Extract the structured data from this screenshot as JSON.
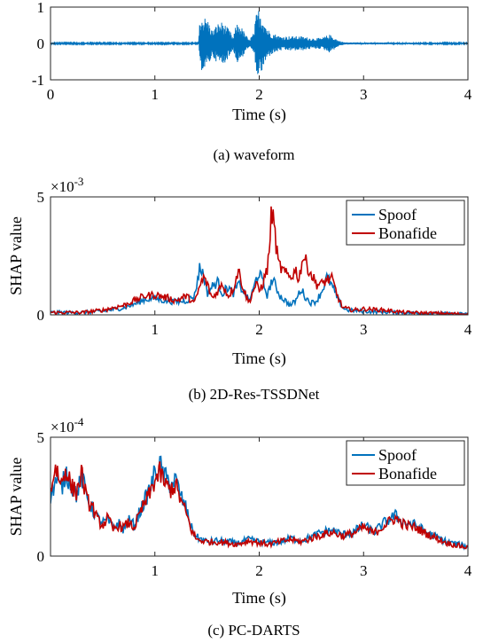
{
  "chart_data": [
    {
      "type": "line",
      "caption": "(a) waveform",
      "xlabel": "Time (s)",
      "ylabel": "",
      "xlim": [
        0,
        4
      ],
      "ylim": [
        -1,
        1
      ],
      "xticks": [
        0,
        1,
        2,
        3,
        4
      ],
      "yticks": [
        -1,
        0,
        1
      ],
      "exponent_label": "",
      "legend": "none",
      "grid": false,
      "series": [
        {
          "color": "#0072BD",
          "style": "waveform",
          "envelope": [
            [
              0,
              0.02
            ],
            [
              1.42,
              0.02
            ],
            [
              1.43,
              0.75
            ],
            [
              1.5,
              0.7
            ],
            [
              1.55,
              0.35
            ],
            [
              1.6,
              0.55
            ],
            [
              1.65,
              0.6
            ],
            [
              1.72,
              0.35
            ],
            [
              1.75,
              0.15
            ],
            [
              1.78,
              0.55
            ],
            [
              1.82,
              0.5
            ],
            [
              1.86,
              0.3
            ],
            [
              1.9,
              0.1
            ],
            [
              1.95,
              0.3
            ],
            [
              1.97,
              0.8
            ],
            [
              2.0,
              0.98
            ],
            [
              2.04,
              0.7
            ],
            [
              2.08,
              0.4
            ],
            [
              2.12,
              0.3
            ],
            [
              2.2,
              0.2
            ],
            [
              2.3,
              0.2
            ],
            [
              2.4,
              0.2
            ],
            [
              2.5,
              0.15
            ],
            [
              2.6,
              0.15
            ],
            [
              2.67,
              0.25
            ],
            [
              2.7,
              0.2
            ],
            [
              2.76,
              0.08
            ],
            [
              2.82,
              0.03
            ],
            [
              4,
              0.02
            ]
          ]
        }
      ]
    },
    {
      "type": "line",
      "caption": "(b) 2D-Res-TSSDNet",
      "xlabel": "Time (s)",
      "ylabel": "SHAP value",
      "xlim": [
        0,
        4
      ],
      "ylim": [
        0,
        5
      ],
      "xticks": [
        1,
        2,
        3,
        4
      ],
      "yticks": [
        0,
        5
      ],
      "exponent_label": "×10",
      "exponent": "-3",
      "legend": "top-right",
      "grid": false,
      "series": [
        {
          "name": "Spoof",
          "color": "#0072BD",
          "points": [
            [
              0,
              0.1
            ],
            [
              0.3,
              0.1
            ],
            [
              0.5,
              0.15
            ],
            [
              0.7,
              0.3
            ],
            [
              0.8,
              0.45
            ],
            [
              0.9,
              0.65
            ],
            [
              1.0,
              0.7
            ],
            [
              1.1,
              0.6
            ],
            [
              1.2,
              0.55
            ],
            [
              1.3,
              0.6
            ],
            [
              1.38,
              0.8
            ],
            [
              1.43,
              2.0
            ],
            [
              1.47,
              1.7
            ],
            [
              1.5,
              0.9
            ],
            [
              1.55,
              1.2
            ],
            [
              1.6,
              1.4
            ],
            [
              1.65,
              0.9
            ],
            [
              1.7,
              1.2
            ],
            [
              1.75,
              0.9
            ],
            [
              1.8,
              1.3
            ],
            [
              1.85,
              1.0
            ],
            [
              1.9,
              0.6
            ],
            [
              1.94,
              1.0
            ],
            [
              1.97,
              1.5
            ],
            [
              2.0,
              1.8
            ],
            [
              2.04,
              1.3
            ],
            [
              2.08,
              0.8
            ],
            [
              2.12,
              1.5
            ],
            [
              2.15,
              1.3
            ],
            [
              2.2,
              0.8
            ],
            [
              2.25,
              0.6
            ],
            [
              2.3,
              0.4
            ],
            [
              2.35,
              0.6
            ],
            [
              2.4,
              1.1
            ],
            [
              2.45,
              0.7
            ],
            [
              2.5,
              0.5
            ],
            [
              2.55,
              0.6
            ],
            [
              2.6,
              1.0
            ],
            [
              2.65,
              1.6
            ],
            [
              2.7,
              1.2
            ],
            [
              2.75,
              0.7
            ],
            [
              2.8,
              0.3
            ],
            [
              2.85,
              0.2
            ],
            [
              3.0,
              0.15
            ],
            [
              3.3,
              0.1
            ],
            [
              4,
              0.03
            ]
          ]
        },
        {
          "name": "Bonafide",
          "color": "#C00000",
          "points": [
            [
              0,
              0.1
            ],
            [
              0.3,
              0.1
            ],
            [
              0.5,
              0.2
            ],
            [
              0.7,
              0.4
            ],
            [
              0.8,
              0.6
            ],
            [
              0.9,
              0.8
            ],
            [
              1.0,
              0.85
            ],
            [
              1.1,
              0.75
            ],
            [
              1.2,
              0.6
            ],
            [
              1.3,
              0.8
            ],
            [
              1.38,
              0.5
            ],
            [
              1.43,
              1.2
            ],
            [
              1.47,
              1.6
            ],
            [
              1.5,
              1.3
            ],
            [
              1.55,
              0.7
            ],
            [
              1.6,
              1.0
            ],
            [
              1.65,
              1.3
            ],
            [
              1.7,
              0.8
            ],
            [
              1.75,
              1.1
            ],
            [
              1.8,
              1.9
            ],
            [
              1.85,
              1.1
            ],
            [
              1.9,
              0.5
            ],
            [
              1.94,
              1.0
            ],
            [
              1.97,
              1.3
            ],
            [
              2.0,
              1.0
            ],
            [
              2.04,
              1.4
            ],
            [
              2.08,
              2.0
            ],
            [
              2.1,
              3.0
            ],
            [
              2.12,
              4.5
            ],
            [
              2.15,
              3.5
            ],
            [
              2.18,
              2.2
            ],
            [
              2.22,
              1.9
            ],
            [
              2.26,
              1.7
            ],
            [
              2.3,
              1.6
            ],
            [
              2.35,
              1.9
            ],
            [
              2.38,
              1.5
            ],
            [
              2.42,
              2.5
            ],
            [
              2.45,
              2.2
            ],
            [
              2.5,
              1.7
            ],
            [
              2.55,
              1.3
            ],
            [
              2.6,
              1.3
            ],
            [
              2.65,
              1.5
            ],
            [
              2.7,
              1.5
            ],
            [
              2.75,
              0.8
            ],
            [
              2.8,
              0.3
            ],
            [
              2.9,
              0.2
            ],
            [
              3.0,
              0.25
            ],
            [
              3.2,
              0.2
            ],
            [
              3.4,
              0.1
            ],
            [
              4,
              0.03
            ]
          ]
        }
      ]
    },
    {
      "type": "line",
      "caption": "(c) PC-DARTS",
      "xlabel": "Time (s)",
      "ylabel": "SHAP value",
      "xlim": [
        0,
        4
      ],
      "ylim": [
        0,
        5
      ],
      "xticks": [
        1,
        2,
        3,
        4
      ],
      "yticks": [
        0,
        5
      ],
      "exponent_label": "×10",
      "exponent": "-4",
      "legend": "top-right",
      "grid": false,
      "series": [
        {
          "name": "Spoof",
          "color": "#0072BD",
          "points": [
            [
              0,
              2.5
            ],
            [
              0.05,
              3.2
            ],
            [
              0.1,
              2.8
            ],
            [
              0.15,
              3.5
            ],
            [
              0.2,
              3.0
            ],
            [
              0.25,
              2.6
            ],
            [
              0.3,
              3.3
            ],
            [
              0.35,
              2.5
            ],
            [
              0.4,
              2.0
            ],
            [
              0.45,
              1.6
            ],
            [
              0.5,
              1.4
            ],
            [
              0.55,
              1.5
            ],
            [
              0.6,
              1.2
            ],
            [
              0.65,
              1.4
            ],
            [
              0.7,
              1.1
            ],
            [
              0.75,
              1.5
            ],
            [
              0.8,
              1.3
            ],
            [
              0.85,
              1.8
            ],
            [
              0.9,
              2.3
            ],
            [
              0.95,
              2.8
            ],
            [
              1.0,
              3.5
            ],
            [
              1.05,
              3.8
            ],
            [
              1.1,
              3.3
            ],
            [
              1.15,
              3.0
            ],
            [
              1.2,
              3.2
            ],
            [
              1.25,
              2.5
            ],
            [
              1.3,
              2.0
            ],
            [
              1.35,
              1.2
            ],
            [
              1.4,
              0.8
            ],
            [
              1.5,
              0.6
            ],
            [
              1.6,
              0.65
            ],
            [
              1.7,
              0.6
            ],
            [
              1.8,
              0.55
            ],
            [
              1.9,
              0.7
            ],
            [
              2.0,
              0.6
            ],
            [
              2.1,
              0.55
            ],
            [
              2.2,
              0.6
            ],
            [
              2.3,
              0.75
            ],
            [
              2.4,
              0.65
            ],
            [
              2.5,
              0.8
            ],
            [
              2.6,
              1.0
            ],
            [
              2.7,
              1.1
            ],
            [
              2.8,
              0.9
            ],
            [
              2.9,
              1.0
            ],
            [
              3.0,
              1.3
            ],
            [
              3.1,
              1.0
            ],
            [
              3.2,
              1.4
            ],
            [
              3.3,
              1.7
            ],
            [
              3.4,
              1.4
            ],
            [
              3.5,
              1.3
            ],
            [
              3.6,
              1.0
            ],
            [
              3.7,
              0.8
            ],
            [
              3.8,
              0.6
            ],
            [
              3.9,
              0.5
            ],
            [
              4,
              0.4
            ]
          ]
        },
        {
          "name": "Bonafide",
          "color": "#C00000",
          "points": [
            [
              0,
              2.8
            ],
            [
              0.05,
              3.8
            ],
            [
              0.1,
              3.0
            ],
            [
              0.15,
              3.7
            ],
            [
              0.2,
              2.9
            ],
            [
              0.25,
              2.7
            ],
            [
              0.3,
              3.5
            ],
            [
              0.35,
              2.3
            ],
            [
              0.4,
              2.1
            ],
            [
              0.45,
              1.5
            ],
            [
              0.5,
              1.3
            ],
            [
              0.55,
              1.6
            ],
            [
              0.6,
              1.1
            ],
            [
              0.65,
              1.3
            ],
            [
              0.7,
              1.2
            ],
            [
              0.75,
              1.4
            ],
            [
              0.8,
              1.2
            ],
            [
              0.85,
              1.7
            ],
            [
              0.9,
              2.2
            ],
            [
              0.95,
              2.6
            ],
            [
              1.0,
              3.2
            ],
            [
              1.05,
              3.5
            ],
            [
              1.1,
              3.0
            ],
            [
              1.15,
              2.8
            ],
            [
              1.2,
              3.0
            ],
            [
              1.25,
              2.3
            ],
            [
              1.3,
              1.8
            ],
            [
              1.35,
              1.1
            ],
            [
              1.4,
              0.7
            ],
            [
              1.5,
              0.6
            ],
            [
              1.6,
              0.6
            ],
            [
              1.7,
              0.55
            ],
            [
              1.8,
              0.5
            ],
            [
              1.9,
              0.65
            ],
            [
              2.0,
              0.55
            ],
            [
              2.1,
              0.5
            ],
            [
              2.2,
              0.6
            ],
            [
              2.3,
              0.7
            ],
            [
              2.4,
              0.6
            ],
            [
              2.5,
              0.75
            ],
            [
              2.6,
              0.9
            ],
            [
              2.7,
              1.0
            ],
            [
              2.8,
              0.85
            ],
            [
              2.9,
              0.95
            ],
            [
              3.0,
              1.2
            ],
            [
              3.1,
              0.95
            ],
            [
              3.2,
              1.3
            ],
            [
              3.3,
              1.6
            ],
            [
              3.4,
              1.3
            ],
            [
              3.5,
              1.2
            ],
            [
              3.6,
              0.95
            ],
            [
              3.7,
              0.75
            ],
            [
              3.8,
              0.55
            ],
            [
              3.9,
              0.45
            ],
            [
              4,
              0.35
            ]
          ]
        }
      ]
    }
  ]
}
